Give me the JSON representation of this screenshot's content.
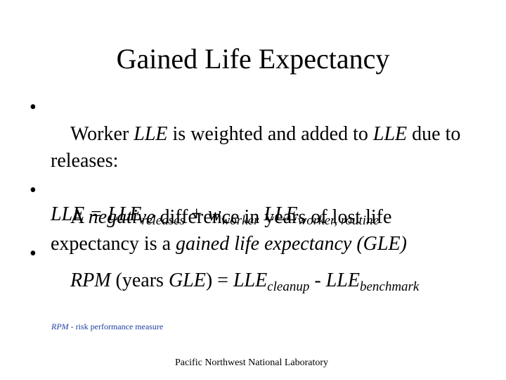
{
  "title": "Gained Life Expectancy",
  "bullets": [
    [
      "Worker ",
      "LLE",
      " is weighted and added to ",
      "LLE",
      " due to releases:"
    ],
    [
      "A ",
      "negative",
      " difference in years of lost life expectancy is a ",
      "gained life expectancy (GLE)"
    ],
    [
      "RPM",
      " (years ",
      "GLE",
      ") = ",
      "LLE",
      "cleanup",
      " - ",
      "LLE",
      "benchmark"
    ]
  ],
  "formula": [
    "LLE = LLE",
    "releases",
    " + w",
    "worker",
    " LLE",
    "worker, routine"
  ],
  "footnote": [
    "RPM",
    " - risk performance measure"
  ],
  "footer": "Pacific Northwest National Laboratory"
}
